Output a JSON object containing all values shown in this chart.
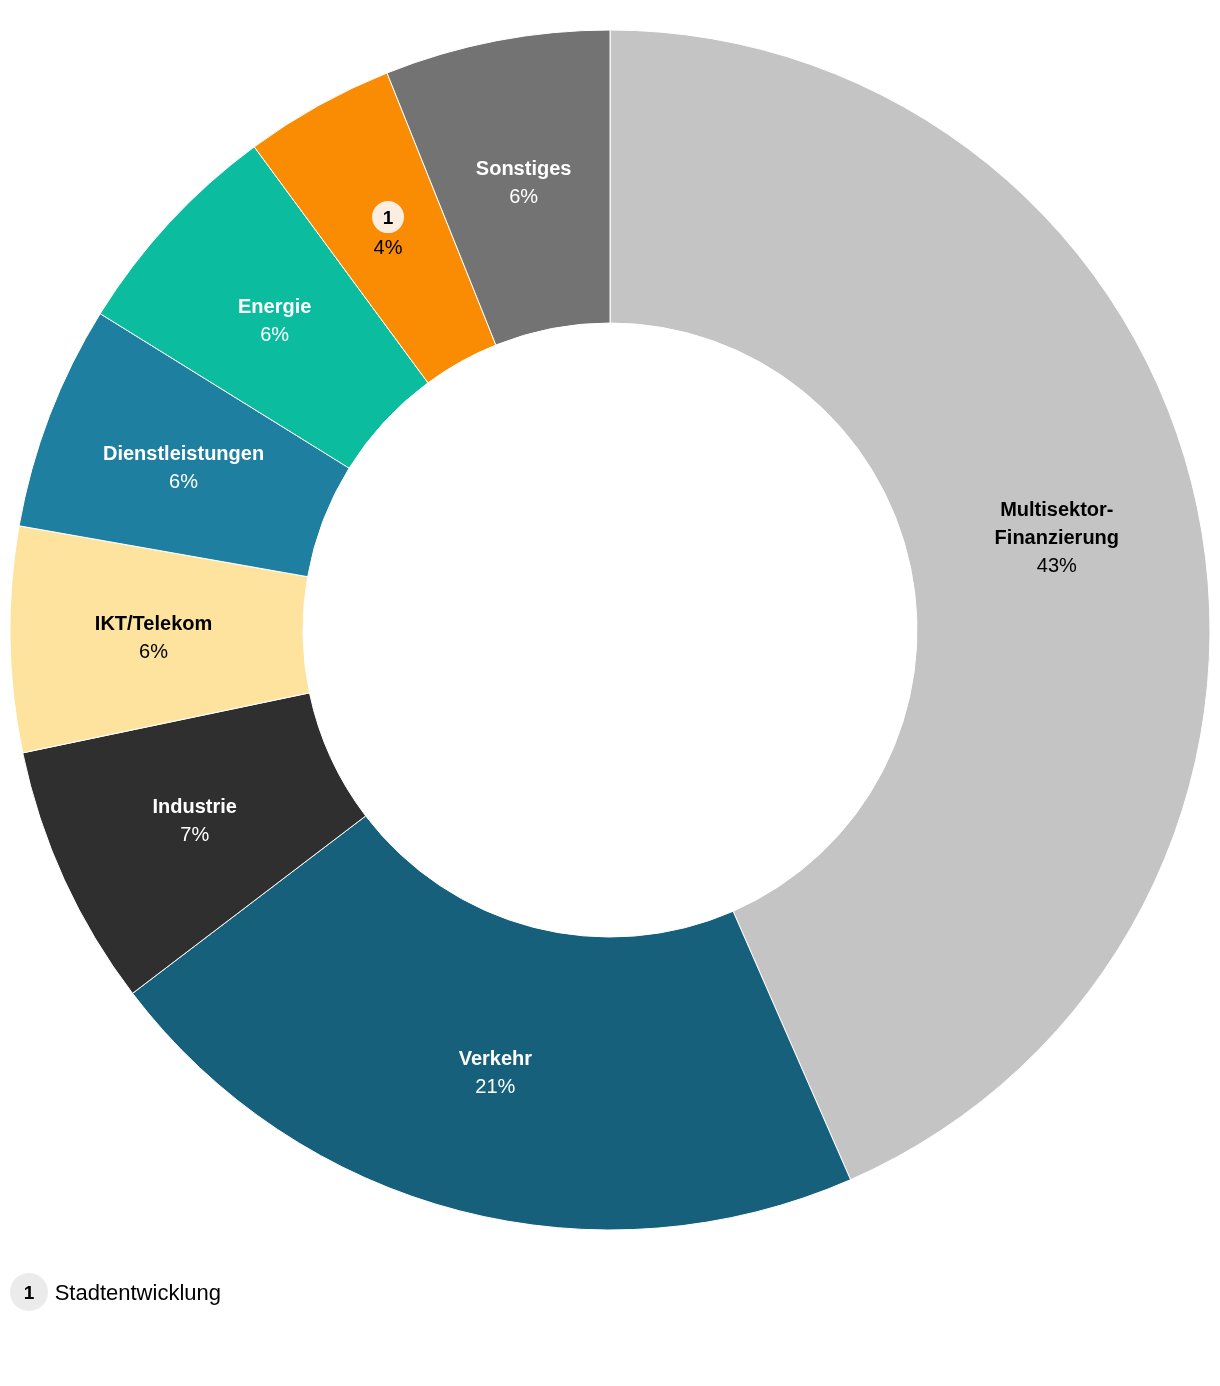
{
  "chart_data": {
    "type": "donut",
    "categories": [
      "Multisektor-Finanzierung",
      "Verkehr",
      "Industrie",
      "IKT/Telekom",
      "Dienstleistungen",
      "Energie",
      "1",
      "Sonstiges"
    ],
    "values": [
      43,
      21,
      7,
      6,
      6,
      6,
      4,
      6
    ],
    "value_labels": [
      "43%",
      "21%",
      "7%",
      "6%",
      "6%",
      "6%",
      "4%",
      "6%"
    ],
    "colors": [
      "#c4c4c4",
      "#17607c",
      "#2f2f2f",
      "#fde39d",
      "#1e7fa0",
      "#0bbd9e",
      "#f98c02",
      "#737373"
    ],
    "legend": false,
    "annotations": [
      "1 Stadtentwicklung"
    ]
  }
}
